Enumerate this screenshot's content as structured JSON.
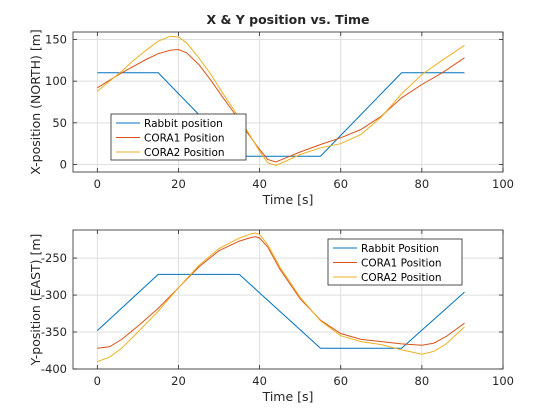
{
  "chart_data": [
    {
      "type": "line",
      "title": "X & Y position vs. Time",
      "xlabel": "Time [s]",
      "ylabel": "X-position (NORTH) [m]",
      "xlim": [
        -6,
        100
      ],
      "ylim": [
        -9,
        159
      ],
      "xticks": [
        0,
        20,
        40,
        60,
        80,
        100
      ],
      "yticks": [
        0,
        50,
        100,
        150
      ],
      "grid": true,
      "legend_position": "lower-left",
      "series": [
        {
          "name": "Rabbit position",
          "color": "#0072BD",
          "x": [
            0,
            15,
            35,
            55,
            75,
            90.5
          ],
          "y": [
            110,
            110,
            10,
            10,
            110,
            110
          ]
        },
        {
          "name": "CORA1 Position",
          "color": "#D95319",
          "x": [
            0,
            3,
            6,
            9,
            12,
            15,
            18,
            20,
            22,
            25,
            28,
            31,
            34,
            37,
            40,
            42,
            44,
            46,
            50,
            55,
            60,
            65,
            70,
            75,
            80,
            85,
            90.5
          ],
          "y": [
            92,
            101,
            110,
            118,
            126,
            133,
            137,
            138,
            134,
            120,
            101,
            80,
            60,
            38,
            18,
            6,
            3,
            7,
            15,
            24,
            32,
            42,
            58,
            80,
            96,
            110,
            128
          ]
        },
        {
          "name": "CORA2 Position",
          "color": "#EDB120",
          "x": [
            0,
            3,
            6,
            9,
            12,
            15,
            18,
            20,
            22,
            25,
            28,
            31,
            34,
            37,
            40,
            42,
            44,
            46,
            50,
            55,
            60,
            65,
            70,
            75,
            80,
            85,
            90.5
          ],
          "y": [
            88,
            100,
            112,
            125,
            137,
            148,
            154,
            153,
            146,
            128,
            108,
            85,
            63,
            40,
            16,
            2,
            -1,
            3,
            12,
            20,
            25,
            36,
            57,
            85,
            108,
            125,
            143
          ]
        }
      ]
    },
    {
      "type": "line",
      "title": "",
      "xlabel": "Time [s]",
      "ylabel": "Y-position (EAST) [m]",
      "xlim": [
        -6,
        100
      ],
      "ylim": [
        -400,
        -212
      ],
      "xticks": [
        0,
        20,
        40,
        60,
        80,
        100
      ],
      "yticks": [
        -400,
        -350,
        -300,
        -250
      ],
      "grid": true,
      "legend_position": "top-right",
      "series": [
        {
          "name": "Rabbit Position",
          "color": "#0072BD",
          "x": [
            0,
            15,
            35,
            55,
            75,
            90.5
          ],
          "y": [
            -348,
            -272,
            -272,
            -372,
            -372,
            -296
          ]
        },
        {
          "name": "CORA1 Position",
          "color": "#D95319",
          "x": [
            0,
            3,
            6,
            10,
            15,
            20,
            25,
            30,
            35,
            38,
            39,
            40,
            42,
            45,
            50,
            55,
            60,
            65,
            70,
            75,
            80,
            83,
            86,
            90.5
          ],
          "y": [
            -372,
            -370,
            -360,
            -342,
            -318,
            -290,
            -262,
            -240,
            -227,
            -222,
            -221,
            -223,
            -235,
            -265,
            -305,
            -334,
            -352,
            -360,
            -363,
            -366,
            -368,
            -365,
            -356,
            -338
          ]
        },
        {
          "name": "CORA2 Position",
          "color": "#EDB120",
          "x": [
            0,
            3,
            6,
            10,
            15,
            20,
            25,
            30,
            35,
            38,
            39,
            40,
            42,
            45,
            50,
            55,
            60,
            65,
            70,
            75,
            80,
            83,
            86,
            90.5
          ],
          "y": [
            -390,
            -384,
            -372,
            -350,
            -322,
            -290,
            -260,
            -237,
            -223,
            -217,
            -216,
            -218,
            -232,
            -262,
            -303,
            -335,
            -355,
            -363,
            -367,
            -374,
            -380,
            -376,
            -366,
            -343
          ]
        }
      ]
    }
  ]
}
